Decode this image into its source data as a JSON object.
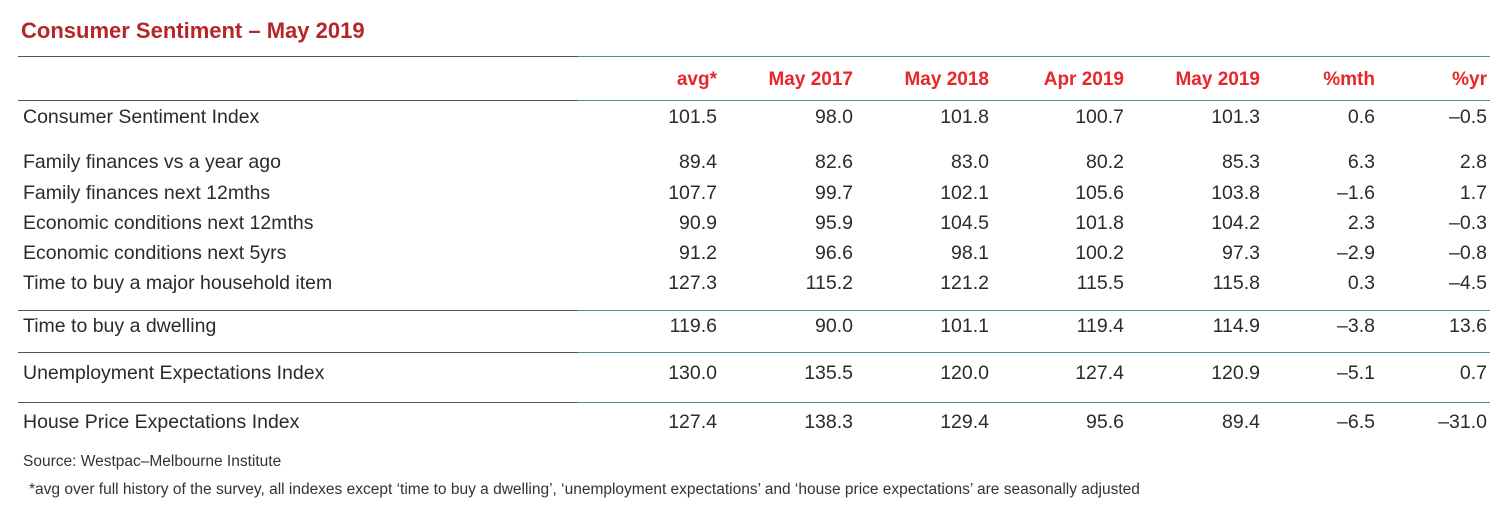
{
  "title": "Consumer Sentiment – May 2019",
  "columns": [
    "avg*",
    "May 2017",
    "May 2018",
    "Apr 2019",
    "May 2019",
    "%mth",
    "%yr"
  ],
  "rows": [
    {
      "label": "Consumer Sentiment Index",
      "values": [
        "101.5",
        "98.0",
        "101.8",
        "100.7",
        "101.3",
        "0.6",
        "–0.5"
      ]
    },
    {
      "label": "Family finances vs a year ago",
      "values": [
        "89.4",
        "82.6",
        "83.0",
        "80.2",
        "85.3",
        "6.3",
        "2.8"
      ]
    },
    {
      "label": "Family finances next 12mths",
      "values": [
        "107.7",
        "99.7",
        "102.1",
        "105.6",
        "103.8",
        "–1.6",
        "1.7"
      ]
    },
    {
      "label": "Economic conditions next 12mths",
      "values": [
        "90.9",
        "95.9",
        "104.5",
        "101.8",
        "104.2",
        "2.3",
        "–0.3"
      ]
    },
    {
      "label": "Economic conditions next 5yrs",
      "values": [
        "91.2",
        "96.6",
        "98.1",
        "100.2",
        "97.3",
        "–2.9",
        "–0.8"
      ]
    },
    {
      "label": "Time to buy a major household item",
      "values": [
        "127.3",
        "115.2",
        "121.2",
        "115.5",
        "115.8",
        "0.3",
        "–4.5"
      ]
    },
    {
      "label": "Time to buy a dwelling",
      "values": [
        "119.6",
        "90.0",
        "101.1",
        "119.4",
        "114.9",
        "–3.8",
        "13.6"
      ]
    },
    {
      "label": "Unemployment Expectations Index",
      "values": [
        "130.0",
        "135.5",
        "120.0",
        "127.4",
        "120.9",
        "–5.1",
        "0.7"
      ]
    },
    {
      "label": "House Price Expectations Index",
      "values": [
        "127.4",
        "138.3",
        "129.4",
        "95.6",
        "89.4",
        "–6.5",
        "–31.0"
      ]
    }
  ],
  "source": "Source: Westpac–Melbourne Institute",
  "footnote": "*avg over full history of the survey, all indexes except ‘time to buy a dwelling’, ‘unemployment expectations’ and ‘house price expectations’ are seasonally adjusted"
}
